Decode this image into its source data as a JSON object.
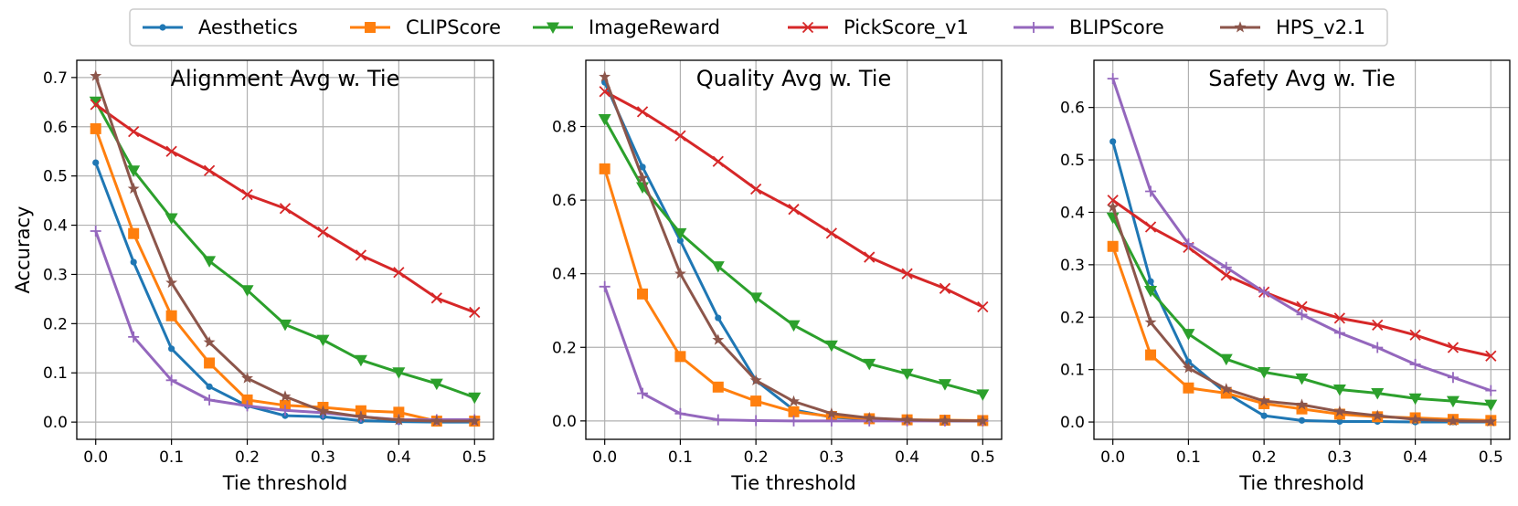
{
  "legend": [
    {
      "name": "Aesthetics",
      "color": "#1f77b4",
      "marker": "circle"
    },
    {
      "name": "CLIPScore",
      "color": "#ff7f0e",
      "marker": "square"
    },
    {
      "name": "ImageReward",
      "color": "#2ca02c",
      "marker": "triangle-down"
    },
    {
      "name": "PickScore_v1",
      "color": "#d62728",
      "marker": "x"
    },
    {
      "name": "BLIPScore",
      "color": "#9467bd",
      "marker": "plus"
    },
    {
      "name": "HPS_v2.1",
      "color": "#8c564b",
      "marker": "star"
    }
  ],
  "chart_data": [
    {
      "type": "line",
      "title": "Alignment Avg w. Tie",
      "xlabel": "Tie threshold",
      "ylabel": "Accuracy",
      "x": [
        0.0,
        0.05,
        0.1,
        0.15,
        0.2,
        0.25,
        0.3,
        0.35,
        0.4,
        0.45,
        0.5
      ],
      "xticks": [
        0.0,
        0.1,
        0.2,
        0.3,
        0.4,
        0.5
      ],
      "xtick_labels": [
        "0.0",
        "0.1",
        "0.2",
        "0.3",
        "0.4",
        "0.5"
      ],
      "yticks": [
        0.0,
        0.1,
        0.2,
        0.3,
        0.4,
        0.5,
        0.6,
        0.7
      ],
      "ytick_labels": [
        "0.0",
        "0.1",
        "0.2",
        "0.3",
        "0.4",
        "0.5",
        "0.6",
        "0.7"
      ],
      "xlim": [
        -0.025,
        0.525
      ],
      "ylim": [
        -0.035,
        0.735
      ],
      "grid": true,
      "series": [
        {
          "name": "Aesthetics",
          "values": [
            0.527,
            0.325,
            0.149,
            0.072,
            0.033,
            0.013,
            0.011,
            0.003,
            0.001,
            0.0,
            0.0
          ]
        },
        {
          "name": "CLIPScore",
          "values": [
            0.596,
            0.383,
            0.216,
            0.12,
            0.045,
            0.034,
            0.03,
            0.023,
            0.02,
            0.002,
            0.002
          ]
        },
        {
          "name": "ImageReward",
          "values": [
            0.651,
            0.511,
            0.414,
            0.327,
            0.268,
            0.198,
            0.167,
            0.126,
            0.101,
            0.078,
            0.05
          ]
        },
        {
          "name": "PickScore_v1",
          "values": [
            0.645,
            0.59,
            0.55,
            0.511,
            0.462,
            0.434,
            0.386,
            0.339,
            0.304,
            0.252,
            0.223
          ]
        },
        {
          "name": "BLIPScore",
          "values": [
            0.388,
            0.173,
            0.085,
            0.045,
            0.033,
            0.024,
            0.019,
            0.011,
            0.005,
            0.005,
            0.005
          ]
        },
        {
          "name": "HPS_v2.1",
          "values": [
            0.703,
            0.474,
            0.283,
            0.162,
            0.089,
            0.052,
            0.022,
            0.011,
            0.004,
            0.002,
            0.002
          ]
        }
      ]
    },
    {
      "type": "line",
      "title": "Quality Avg w. Tie",
      "xlabel": "Tie threshold",
      "ylabel": "",
      "x": [
        0.0,
        0.05,
        0.1,
        0.15,
        0.2,
        0.25,
        0.3,
        0.35,
        0.4,
        0.45,
        0.5
      ],
      "xticks": [
        0.0,
        0.1,
        0.2,
        0.3,
        0.4,
        0.5
      ],
      "xtick_labels": [
        "0.0",
        "0.1",
        "0.2",
        "0.3",
        "0.4",
        "0.5"
      ],
      "yticks": [
        0.0,
        0.2,
        0.4,
        0.6,
        0.8
      ],
      "ytick_labels": [
        "0.0",
        "0.2",
        "0.4",
        "0.6",
        "0.8"
      ],
      "xlim": [
        -0.025,
        0.525
      ],
      "ylim": [
        -0.05,
        0.98
      ],
      "grid": true,
      "series": [
        {
          "name": "Aesthetics",
          "values": [
            0.92,
            0.69,
            0.49,
            0.28,
            0.11,
            0.03,
            0.01,
            0.005,
            0.002,
            0.0,
            0.0
          ]
        },
        {
          "name": "CLIPScore",
          "values": [
            0.685,
            0.345,
            0.175,
            0.092,
            0.054,
            0.025,
            0.012,
            0.006,
            0.003,
            0.002,
            0.001
          ]
        },
        {
          "name": "ImageReward",
          "values": [
            0.82,
            0.635,
            0.51,
            0.42,
            0.335,
            0.26,
            0.205,
            0.155,
            0.128,
            0.1,
            0.072
          ]
        },
        {
          "name": "PickScore_v1",
          "values": [
            0.895,
            0.84,
            0.775,
            0.705,
            0.63,
            0.575,
            0.51,
            0.445,
            0.4,
            0.36,
            0.31
          ]
        },
        {
          "name": "BLIPScore",
          "values": [
            0.365,
            0.075,
            0.02,
            0.003,
            0.001,
            0.0,
            0.0,
            0.0,
            0.0,
            0.0,
            0.0
          ]
        },
        {
          "name": "HPS_v2.1",
          "values": [
            0.935,
            0.66,
            0.4,
            0.22,
            0.11,
            0.053,
            0.02,
            0.008,
            0.003,
            0.001,
            0.0
          ]
        }
      ]
    },
    {
      "type": "line",
      "title": "Safety Avg w. Tie",
      "xlabel": "Tie threshold",
      "ylabel": "",
      "x": [
        0.0,
        0.05,
        0.1,
        0.15,
        0.2,
        0.25,
        0.3,
        0.35,
        0.4,
        0.45,
        0.5
      ],
      "xticks": [
        0.0,
        0.1,
        0.2,
        0.3,
        0.4,
        0.5
      ],
      "xtick_labels": [
        "0.0",
        "0.1",
        "0.2",
        "0.3",
        "0.4",
        "0.5"
      ],
      "yticks": [
        0.0,
        0.1,
        0.2,
        0.3,
        0.4,
        0.5,
        0.6
      ],
      "ytick_labels": [
        "0.0",
        "0.1",
        "0.2",
        "0.3",
        "0.4",
        "0.5",
        "0.6"
      ],
      "xlim": [
        -0.025,
        0.525
      ],
      "ylim": [
        -0.033,
        0.69
      ],
      "grid": true,
      "series": [
        {
          "name": "Aesthetics",
          "values": [
            0.535,
            0.268,
            0.115,
            0.055,
            0.012,
            0.003,
            0.001,
            0.001,
            0.0,
            0.0,
            0.0
          ]
        },
        {
          "name": "CLIPScore",
          "values": [
            0.335,
            0.128,
            0.065,
            0.055,
            0.035,
            0.025,
            0.015,
            0.01,
            0.008,
            0.005,
            0.003
          ]
        },
        {
          "name": "ImageReward",
          "values": [
            0.39,
            0.25,
            0.168,
            0.12,
            0.095,
            0.083,
            0.062,
            0.055,
            0.045,
            0.04,
            0.033
          ]
        },
        {
          "name": "PickScore_v1",
          "values": [
            0.423,
            0.372,
            0.333,
            0.28,
            0.248,
            0.22,
            0.198,
            0.185,
            0.166,
            0.142,
            0.126
          ]
        },
        {
          "name": "BLIPScore",
          "values": [
            0.655,
            0.44,
            0.34,
            0.295,
            0.248,
            0.205,
            0.17,
            0.142,
            0.11,
            0.085,
            0.06
          ]
        },
        {
          "name": "HPS_v2.1",
          "values": [
            0.41,
            0.19,
            0.103,
            0.063,
            0.04,
            0.033,
            0.02,
            0.012,
            0.005,
            0.002,
            0.001
          ]
        }
      ]
    }
  ]
}
